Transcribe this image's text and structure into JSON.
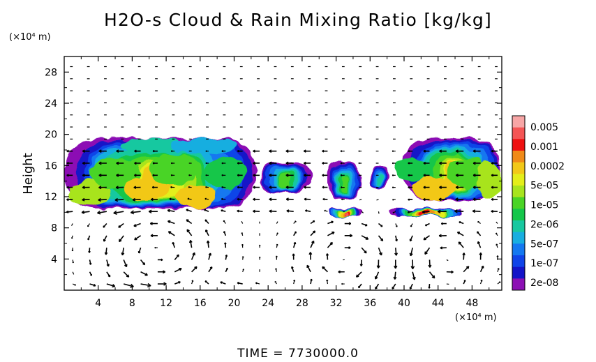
{
  "chart_data": {
    "type": "heatmap",
    "title": "H2O-s Cloud & Rain Mixing Ratio [kg/kg]",
    "ylabel": "Height",
    "xlabel": "",
    "x_unit_label": "(×10⁴ m)",
    "y_unit_label": "(×10⁴ m)",
    "x_ticks": [
      4,
      8,
      12,
      16,
      20,
      24,
      28,
      32,
      36,
      40,
      44,
      48
    ],
    "y_ticks": [
      4,
      8,
      12,
      16,
      20,
      24,
      28
    ],
    "xlim": [
      0,
      51.5
    ],
    "ylim": [
      0,
      30
    ],
    "colorbar": {
      "labels": [
        "0.005",
        "0.001",
        "0.0002",
        "5e-05",
        "1e-05",
        "2e-06",
        "5e-07",
        "1e-07",
        "2e-08"
      ],
      "colors": [
        "#f7a6a6",
        "#f45555",
        "#ee1111",
        "#f08a18",
        "#f2c818",
        "#e4ee1a",
        "#a8e41e",
        "#4ad426",
        "#14c64a",
        "#18c8a0",
        "#18aee0",
        "#1478f0",
        "#1044e8",
        "#1414c8",
        "#8c10b4"
      ],
      "color_order": "top-to-bottom"
    },
    "cloud_regions": [
      {
        "x0": 0,
        "x1": 22.5,
        "y0": 10.5,
        "y1": 19.5,
        "peak": "0.0002"
      },
      {
        "x0": 23,
        "x1": 29,
        "y0": 12.5,
        "y1": 16.5,
        "peak": "1e-05"
      },
      {
        "x0": 31,
        "x1": 35,
        "y0": 11.5,
        "y1": 16.5,
        "peak": "1e-05"
      },
      {
        "x0": 36,
        "x1": 38,
        "y0": 13,
        "y1": 16,
        "peak": "2e-06"
      },
      {
        "x0": 40,
        "x1": 51.5,
        "y0": 11.5,
        "y1": 19.5,
        "peak": "0.0002"
      },
      {
        "x0": 31,
        "x1": 35,
        "y0": 9.5,
        "y1": 10.5,
        "peak": "0.005"
      },
      {
        "x0": 38.5,
        "x1": 47,
        "y0": 9.5,
        "y1": 10.5,
        "peak": "0.001"
      }
    ],
    "wind_vectors": "arrow field drawn over the full domain"
  },
  "time_label": "TIME  =  7730000.0"
}
